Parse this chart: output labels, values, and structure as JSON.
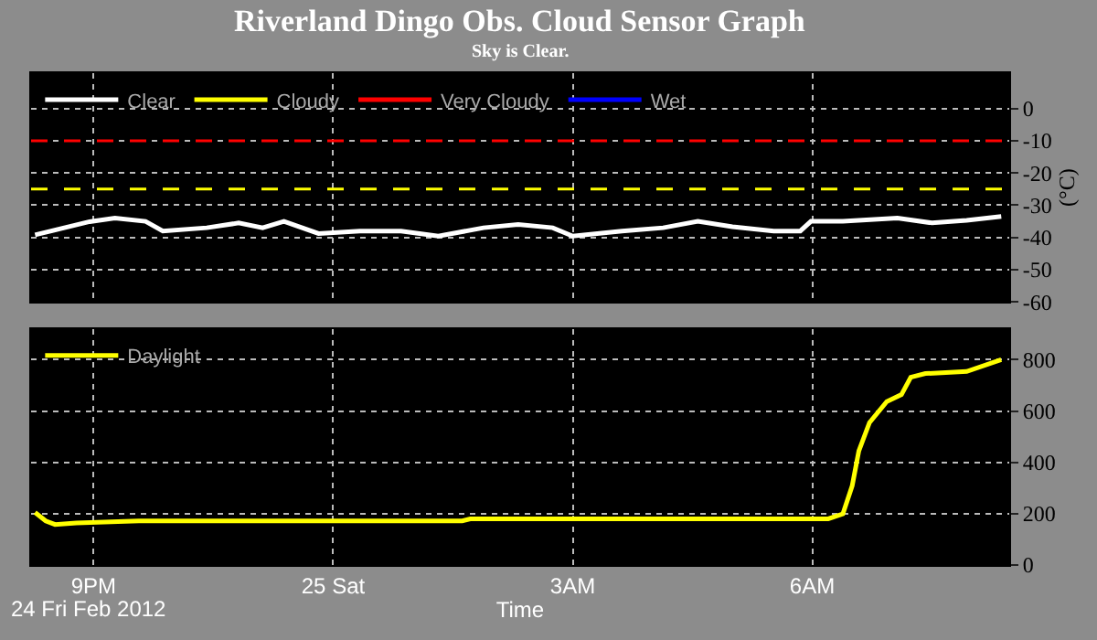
{
  "chart_data": [
    {
      "type": "line",
      "title": "Riverland Dingo Obs. Cloud Sensor Graph",
      "subtitle": "Sky is Clear.",
      "ylabel": "(°C)",
      "xlim": [
        "2012-02-24T20:13",
        "2012-02-25T08:28"
      ],
      "xticks": [
        "2012-02-24T21:00",
        "2012-02-25T00:00",
        "2012-02-25T03:00",
        "2012-02-25T06:00"
      ],
      "ylim": [
        -60,
        11
      ],
      "yticks": [
        -60,
        -50,
        -40,
        -30,
        -20,
        -10,
        0
      ],
      "tick_labels": "y",
      "grid": true,
      "legend": "top left",
      "series": [
        {
          "name": "Clear",
          "color": "#ffffff",
          "x": [
            "2012-02-24T20:16",
            "2012-02-24T20:57",
            "2012-02-24T21:16",
            "2012-02-24T21:39",
            "2012-02-24T21:52",
            "2012-02-24T22:25",
            "2012-02-24T22:49",
            "2012-02-24T23:07",
            "2012-02-24T23:23",
            "2012-02-24T23:49",
            "2012-02-25T00:20",
            "2012-02-25T00:51",
            "2012-02-25T01:19",
            "2012-02-25T01:53",
            "2012-02-25T02:19",
            "2012-02-25T02:45",
            "2012-02-25T03:00",
            "2012-02-25T03:37",
            "2012-02-25T04:08",
            "2012-02-25T04:34",
            "2012-02-25T05:00",
            "2012-02-25T05:31",
            "2012-02-25T05:51",
            "2012-02-25T05:59",
            "2012-02-25T06:23",
            "2012-02-25T07:04",
            "2012-02-25T07:30",
            "2012-02-25T07:56",
            "2012-02-25T08:22"
          ],
          "values": [
            -39.2,
            -35.1,
            -34,
            -35,
            -38,
            -37,
            -35.5,
            -37,
            -35,
            -38.8,
            -38,
            -38,
            -39.6,
            -37,
            -36,
            -37,
            -39.6,
            -38,
            -37,
            -35,
            -36.7,
            -38,
            -38,
            -35,
            -35,
            -34,
            -35.5,
            -34.7,
            -33.5
          ]
        },
        {
          "name": "Cloudy",
          "color": "#ffff00"
        },
        {
          "name": "Very Cloudy",
          "color": "#ff0000"
        },
        {
          "name": "Wet",
          "color": "#0000ff"
        }
      ],
      "ref_lines": [
        {
          "axis": "y",
          "value": -10,
          "color": "#ff0000",
          "line_style": "dashed"
        },
        {
          "axis": "y",
          "value": -25,
          "color": "#ffff00",
          "line_style": "dashed"
        }
      ]
    },
    {
      "type": "line",
      "xlabel": "Time",
      "annotations": [
        "24 Fri Feb 2012"
      ],
      "xlim": [
        "2012-02-24T20:13",
        "2012-02-25T08:28"
      ],
      "xticks": [
        {
          "value": "2012-02-24T21:00",
          "label": "9PM"
        },
        {
          "value": "2012-02-25T00:00",
          "label": "25 Sat"
        },
        {
          "value": "2012-02-25T03:00",
          "label": "3AM"
        },
        {
          "value": "2012-02-25T06:00",
          "label": "6AM"
        }
      ],
      "ylim": [
        0,
        920
      ],
      "yticks": [
        0,
        200,
        400,
        600,
        800
      ],
      "grid": true,
      "legend": "top left",
      "series": [
        {
          "name": "Daylight",
          "color": "#ffff00",
          "x": [
            "2012-02-24T20:16",
            "2012-02-24T20:24",
            "2012-02-24T20:31",
            "2012-02-24T20:47",
            "2012-02-24T21:34",
            "2012-02-25T01:37",
            "2012-02-25T01:43",
            "2012-02-25T05:20",
            "2012-02-25T06:12",
            "2012-02-25T06:23",
            "2012-02-25T06:30",
            "2012-02-25T06:35",
            "2012-02-25T06:43",
            "2012-02-25T06:56",
            "2012-02-25T07:07",
            "2012-02-25T07:14",
            "2012-02-25T07:25",
            "2012-02-25T07:56",
            "2012-02-25T08:22"
          ],
          "values": [
            205,
            172,
            158,
            164,
            172,
            172,
            180,
            180,
            180,
            199,
            309,
            445,
            555,
            637,
            664,
            732,
            746,
            754,
            800
          ]
        }
      ]
    }
  ]
}
